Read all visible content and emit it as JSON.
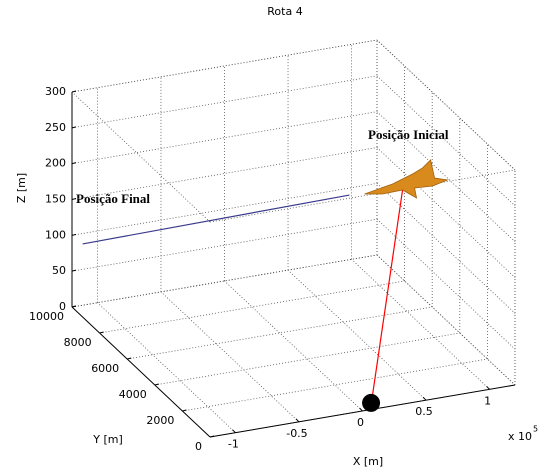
{
  "chart_data": {
    "type": "line3d",
    "title": "Rota 4",
    "xlabel": "X [m]",
    "ylabel": "Y [m]",
    "zlabel": "Z [m]",
    "x_multiplier": {
      "base": "x 10",
      "exponent": "5"
    },
    "xlim": [
      -1.2,
      1.2
    ],
    "xticks": [
      -1,
      -0.5,
      0,
      0.5,
      1
    ],
    "ylim": [
      0,
      10000
    ],
    "yticks": [
      0,
      2000,
      4000,
      6000,
      8000,
      10000
    ],
    "zlim": [
      0,
      300
    ],
    "zticks": [
      0,
      50,
      100,
      150,
      200,
      250,
      300
    ],
    "grid": true,
    "series": [
      {
        "color": "#3a3a8c",
        "x": [
          -1.19,
          0.68
        ],
        "y": [
          9320,
          7210
        ],
        "z": [
          100,
          150
        ]
      },
      {
        "color": "#ff0000",
        "x": [
          1.07,
          0.1
        ],
        "y": [
          6950,
          300
        ],
        "z": [
          150,
          0
        ]
      }
    ],
    "annotations": [
      {
        "text": "Posição Final"
      },
      {
        "text": "Posição Inicial"
      }
    ]
  }
}
